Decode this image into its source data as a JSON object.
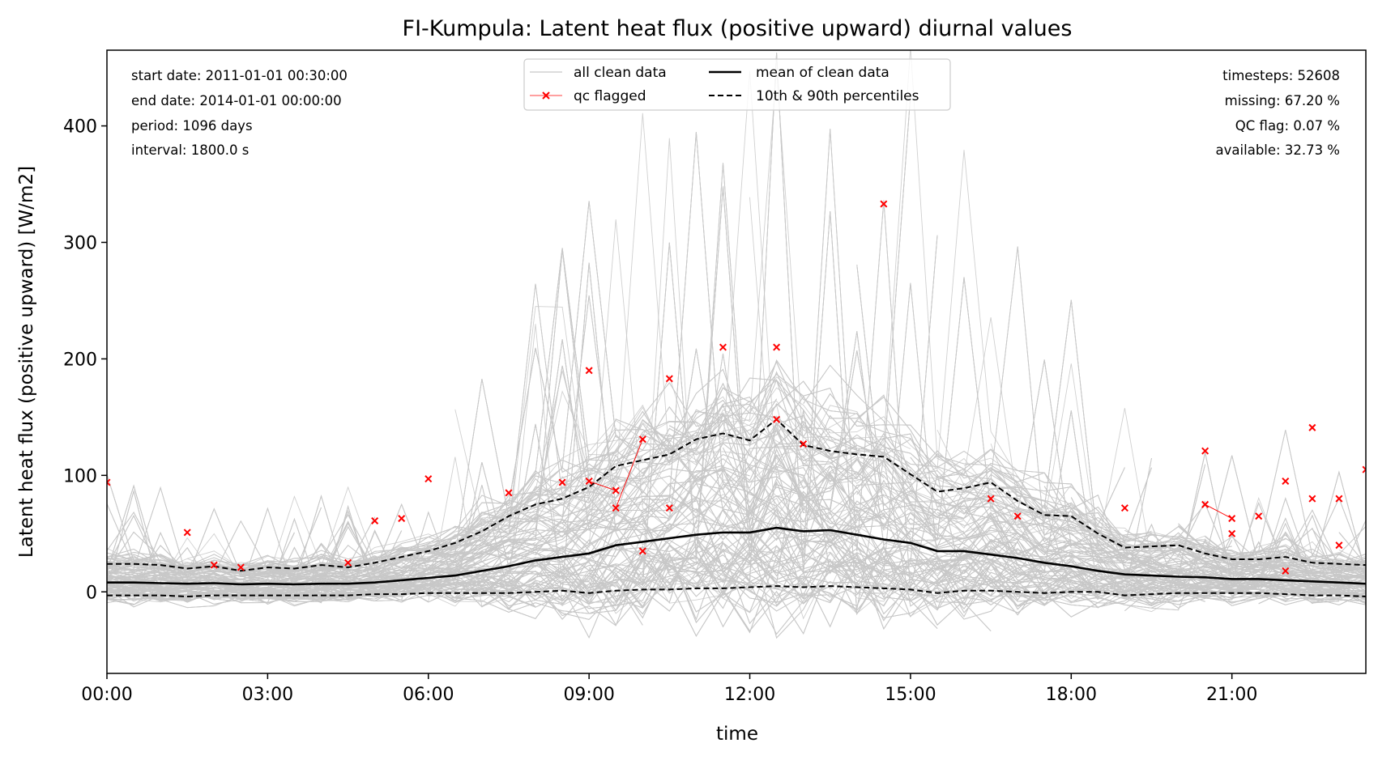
{
  "chart_data": {
    "type": "line",
    "title": "FI-Kumpula: Latent heat flux (positive upward) diurnal values",
    "xlabel": "time",
    "ylabel": "Latent heat flux (positive upward) [W/m2]",
    "xlim_hours": [
      0,
      23.5
    ],
    "ylim": [
      -70,
      465
    ],
    "x_ticks": [
      "00:00",
      "03:00",
      "06:00",
      "09:00",
      "12:00",
      "15:00",
      "18:00",
      "21:00"
    ],
    "y_ticks": [
      "0",
      "100",
      "200",
      "300",
      "400"
    ],
    "grid": false,
    "legend_position": "top-center",
    "legend": [
      {
        "label": "all clean data",
        "style": "thin-gray-line"
      },
      {
        "label": "mean of clean data",
        "style": "solid-black-line"
      },
      {
        "label": "qc flagged",
        "style": "red-x-marker-line"
      },
      {
        "label": "10th & 90th percentiles",
        "style": "dashed-black-line"
      }
    ],
    "stats_left": [
      "start date: 2011-01-01 00:30:00",
      "end date: 2014-01-01 00:00:00",
      "period: 1096 days",
      "interval: 1800.0 s"
    ],
    "stats_right": [
      "timesteps: 52608",
      "missing: 67.20 %",
      "QC flag: 0.07 %",
      "available: 32.73 %"
    ],
    "x_hours": [
      0,
      0.5,
      1,
      1.5,
      2,
      2.5,
      3,
      3.5,
      4,
      4.5,
      5,
      5.5,
      6,
      6.5,
      7,
      7.5,
      8,
      8.5,
      9,
      9.5,
      10,
      10.5,
      11,
      11.5,
      12,
      12.5,
      13,
      13.5,
      14,
      14.5,
      15,
      15.5,
      16,
      16.5,
      17,
      17.5,
      18,
      18.5,
      19,
      19.5,
      20,
      20.5,
      21,
      21.5,
      22,
      22.5,
      23,
      23.5
    ],
    "series": [
      {
        "name": "mean of clean data",
        "values": [
          8,
          8,
          7.5,
          7,
          7.5,
          6.5,
          7,
          6.5,
          7,
          7,
          8,
          10,
          12,
          14,
          18,
          22,
          27,
          30,
          33,
          40,
          43,
          46,
          49,
          51,
          51,
          55,
          52,
          53,
          49,
          45,
          42,
          35,
          35,
          32,
          29,
          25,
          22,
          18,
          15,
          14,
          13,
          12.5,
          11,
          11,
          10,
          9,
          8,
          7
        ]
      },
      {
        "name": "90th percentile",
        "values": [
          24,
          24,
          23,
          20,
          22,
          18,
          21,
          20,
          23,
          21,
          25,
          30,
          35,
          42,
          52,
          65,
          75,
          80,
          90,
          108,
          113,
          118,
          131,
          136,
          130,
          148,
          126,
          121,
          118,
          116,
          101,
          86,
          89,
          94,
          78,
          66,
          65,
          50,
          38,
          39,
          40,
          33,
          28,
          28,
          30,
          25,
          24,
          23
        ]
      },
      {
        "name": "10th percentile",
        "values": [
          -3,
          -3,
          -3,
          -4,
          -3,
          -3,
          -3,
          -3,
          -3,
          -3,
          -2,
          -2,
          -1,
          -1,
          -1,
          -1,
          0,
          1,
          -1,
          1,
          2,
          2,
          3,
          3,
          4,
          5,
          4,
          5,
          4,
          3,
          2,
          -1,
          1,
          1,
          0,
          -1,
          0,
          0,
          -3,
          -2,
          -1,
          -1,
          -1,
          -1,
          -2,
          -3,
          -3,
          -4
        ]
      }
    ],
    "qc_flagged_points": [
      {
        "x": 0.0,
        "y": 94
      },
      {
        "x": 1.5,
        "y": 51
      },
      {
        "x": 2.0,
        "y": 23
      },
      {
        "x": 2.5,
        "y": 21
      },
      {
        "x": 4.5,
        "y": 25
      },
      {
        "x": 5.0,
        "y": 61
      },
      {
        "x": 5.5,
        "y": 63
      },
      {
        "x": 6.0,
        "y": 97
      },
      {
        "x": 7.5,
        "y": 85
      },
      {
        "x": 8.5,
        "y": 94
      },
      {
        "x": 9.0,
        "y": 190
      },
      {
        "x": 9.0,
        "y": 95
      },
      {
        "x": 9.5,
        "y": 87
      },
      {
        "x": 9.5,
        "y": 72
      },
      {
        "x": 10.0,
        "y": 131
      },
      {
        "x": 10.0,
        "y": 35
      },
      {
        "x": 10.5,
        "y": 183
      },
      {
        "x": 10.5,
        "y": 72
      },
      {
        "x": 11.5,
        "y": 210
      },
      {
        "x": 12.5,
        "y": 210
      },
      {
        "x": 12.5,
        "y": 148
      },
      {
        "x": 13.0,
        "y": 127
      },
      {
        "x": 14.5,
        "y": 333
      },
      {
        "x": 16.5,
        "y": 80
      },
      {
        "x": 17.0,
        "y": 65
      },
      {
        "x": 19.0,
        "y": 72
      },
      {
        "x": 20.5,
        "y": 121
      },
      {
        "x": 20.5,
        "y": 75
      },
      {
        "x": 21.0,
        "y": 63
      },
      {
        "x": 21.0,
        "y": 50
      },
      {
        "x": 21.5,
        "y": 65
      },
      {
        "x": 22.0,
        "y": 95
      },
      {
        "x": 22.0,
        "y": 18
      },
      {
        "x": 22.5,
        "y": 141
      },
      {
        "x": 22.5,
        "y": 80
      },
      {
        "x": 23.0,
        "y": 80
      },
      {
        "x": 23.0,
        "y": 40
      },
      {
        "x": 23.5,
        "y": 105
      }
    ],
    "qc_flagged_segments": [
      {
        "x1": 9.0,
        "y1": 95,
        "x2": 9.5,
        "y2": 87
      },
      {
        "x1": 9.5,
        "y1": 72,
        "x2": 10.0,
        "y2": 131
      },
      {
        "x1": 20.5,
        "y1": 75,
        "x2": 21.0,
        "y2": 63
      }
    ],
    "colors": {
      "clean_data": "#c8c8c8",
      "mean": "#000000",
      "percentiles": "#000000",
      "qc_flagged": "#ff0000"
    }
  }
}
